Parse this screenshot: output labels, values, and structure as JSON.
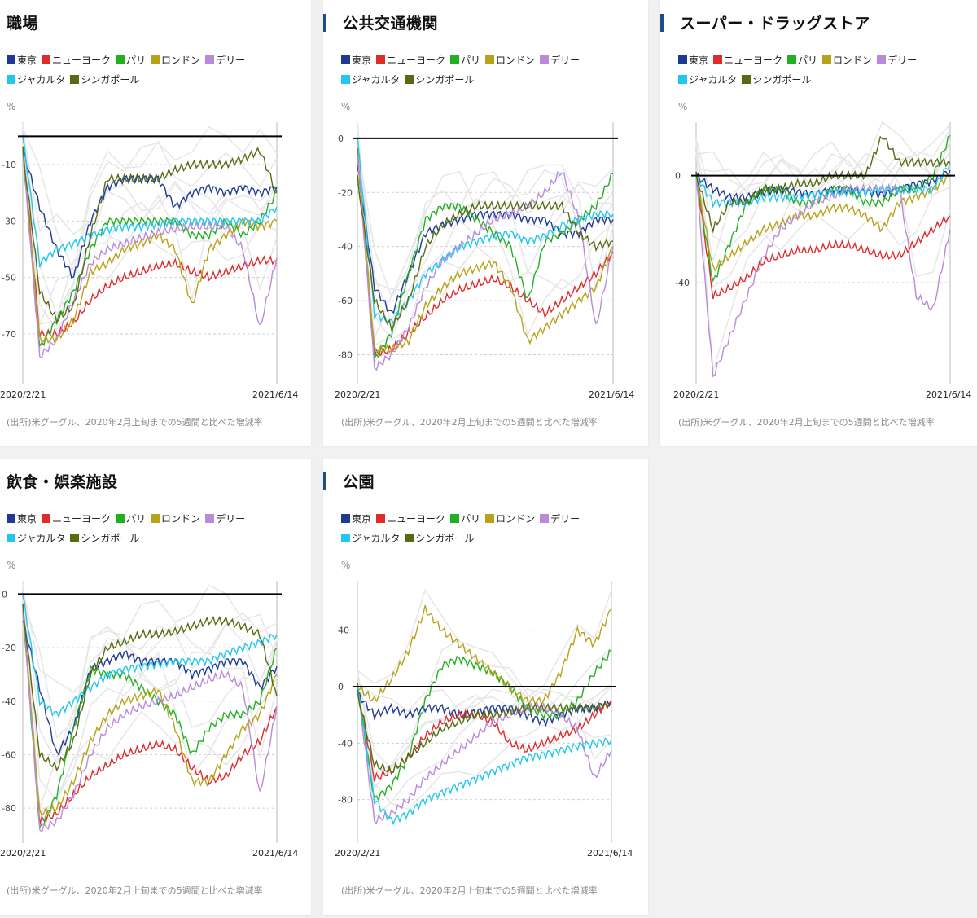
{
  "legend": [
    {
      "name": "東京",
      "color": "#1f3a93"
    },
    {
      "name": "ニューヨーク",
      "color": "#e02b2b"
    },
    {
      "name": "パリ",
      "color": "#22b022"
    },
    {
      "name": "ロンドン",
      "color": "#b8a21a"
    },
    {
      "name": "デリー",
      "color": "#b98adb"
    },
    {
      "name": "ジャカルタ",
      "color": "#22c6ee"
    },
    {
      "name": "シンガポール",
      "color": "#556b12"
    }
  ],
  "unit_label": "%",
  "source_text": "(出所)米グーグル、2020年2月上旬までの5週間と比べた増減率",
  "x_start_label": "2020/2/21",
  "x_end_label": "2021/6/14",
  "chart_data": [
    {
      "type": "line",
      "title": "職場",
      "ylim": [
        -85,
        5
      ],
      "yticks": [
        -10,
        -30,
        -50,
        -70
      ],
      "series": [
        {
          "name": "東京",
          "values": [
            -5,
            -25,
            -40,
            -50,
            -30,
            -18,
            -15,
            -15,
            -15,
            -25,
            -20,
            -18,
            -20,
            -18,
            -20,
            -18
          ]
        },
        {
          "name": "ニューヨーク",
          "values": [
            -5,
            -70,
            -70,
            -66,
            -58,
            -53,
            -50,
            -48,
            -46,
            -45,
            -48,
            -50,
            -48,
            -46,
            -44,
            -44
          ]
        },
        {
          "name": "パリ",
          "values": [
            -5,
            -75,
            -65,
            -55,
            -40,
            -30,
            -30,
            -30,
            -30,
            -30,
            -35,
            -35,
            -30,
            -35,
            -30,
            -20
          ]
        },
        {
          "name": "ロンドン",
          "values": [
            -5,
            -72,
            -72,
            -65,
            -48,
            -45,
            -40,
            -38,
            -35,
            -40,
            -60,
            -40,
            -35,
            -30,
            -32,
            -30
          ]
        },
        {
          "name": "デリー",
          "values": [
            -5,
            -78,
            -72,
            -58,
            -45,
            -40,
            -38,
            -36,
            -34,
            -33,
            -32,
            -32,
            -32,
            -40,
            -68,
            -43
          ]
        },
        {
          "name": "ジャカルタ",
          "values": [
            0,
            -45,
            -40,
            -38,
            -35,
            -33,
            -32,
            -32,
            -31,
            -30,
            -30,
            -30,
            -30,
            -30,
            -30,
            -25
          ]
        },
        {
          "name": "シンガポール",
          "values": [
            -5,
            -55,
            -65,
            -60,
            -35,
            -15,
            -15,
            -15,
            -15,
            -12,
            -10,
            -10,
            -10,
            -8,
            -5,
            -20
          ]
        }
      ]
    },
    {
      "type": "line",
      "title": "公共交通機関",
      "ylim": [
        -88,
        6
      ],
      "yticks": [
        0,
        -20,
        -40,
        -60,
        -80
      ],
      "series": [
        {
          "name": "東京",
          "values": [
            -10,
            -55,
            -65,
            -50,
            -35,
            -32,
            -30,
            -28,
            -28,
            -28,
            -30,
            -30,
            -35,
            -35,
            -30,
            -30
          ]
        },
        {
          "name": "ニューヨーク",
          "values": [
            -5,
            -80,
            -78,
            -72,
            -66,
            -60,
            -56,
            -54,
            -52,
            -55,
            -60,
            -65,
            -60,
            -55,
            -50,
            -42
          ]
        },
        {
          "name": "パリ",
          "values": [
            -5,
            -82,
            -72,
            -50,
            -30,
            -25,
            -25,
            -30,
            -35,
            -40,
            -60,
            -38,
            -35,
            -30,
            -25,
            -13
          ]
        },
        {
          "name": "ロンドン",
          "values": [
            -5,
            -78,
            -78,
            -75,
            -62,
            -55,
            -50,
            -48,
            -46,
            -55,
            -75,
            -70,
            -65,
            -60,
            -55,
            -40
          ]
        },
        {
          "name": "デリー",
          "values": [
            -5,
            -85,
            -80,
            -70,
            -55,
            -45,
            -40,
            -35,
            -30,
            -28,
            -25,
            -20,
            -12,
            -30,
            -70,
            -40
          ]
        },
        {
          "name": "ジャカルタ",
          "values": [
            0,
            -65,
            -68,
            -60,
            -50,
            -45,
            -40,
            -38,
            -36,
            -35,
            -38,
            -36,
            -32,
            -30,
            -28,
            -28
          ]
        },
        {
          "name": "シンガポール",
          "values": [
            -15,
            -60,
            -70,
            -60,
            -40,
            -32,
            -28,
            -25,
            -25,
            -25,
            -25,
            -25,
            -25,
            -35,
            -40,
            -38
          ]
        }
      ]
    },
    {
      "type": "line",
      "title": "スーパー・ドラッグストア",
      "ylim": [
        -75,
        20
      ],
      "yticks": [
        0,
        -40
      ],
      "series": [
        {
          "name": "東京",
          "values": [
            0,
            -5,
            -8,
            -8,
            -6,
            -5,
            -6,
            -7,
            -5,
            -5,
            -6,
            -7,
            -5,
            -3,
            -2,
            2
          ]
        },
        {
          "name": "ニューヨーク",
          "values": [
            0,
            -45,
            -42,
            -38,
            -32,
            -30,
            -28,
            -28,
            -26,
            -26,
            -28,
            -30,
            -30,
            -25,
            -20,
            -15
          ]
        },
        {
          "name": "パリ",
          "values": [
            0,
            -40,
            -25,
            -10,
            -5,
            -5,
            -10,
            -10,
            -5,
            -5,
            -10,
            -10,
            -5,
            -5,
            0,
            15
          ]
        },
        {
          "name": "ロンドン",
          "values": [
            0,
            -35,
            -30,
            -25,
            -20,
            -18,
            -15,
            -15,
            -12,
            -12,
            -15,
            -20,
            -10,
            -8,
            -5,
            0
          ]
        },
        {
          "name": "デリー",
          "values": [
            0,
            -75,
            -60,
            -45,
            -30,
            -20,
            -15,
            -10,
            -8,
            -5,
            -5,
            -5,
            -5,
            -45,
            -50,
            -20
          ]
        },
        {
          "name": "ジャカルタ",
          "values": [
            0,
            -10,
            -10,
            -10,
            -8,
            -8,
            -8,
            -7,
            -6,
            -6,
            -6,
            -5,
            -5,
            -5,
            -5,
            5
          ]
        },
        {
          "name": "シンガポール",
          "values": [
            0,
            -20,
            -10,
            -10,
            -5,
            -5,
            -3,
            -3,
            0,
            0,
            0,
            15,
            5,
            5,
            5,
            5
          ]
        }
      ]
    },
    {
      "type": "line",
      "title": "飲食・娯楽施設",
      "ylim": [
        -90,
        5
      ],
      "yticks": [
        0,
        -20,
        -40,
        -60,
        -80
      ],
      "series": [
        {
          "name": "東京",
          "values": [
            -10,
            -35,
            -60,
            -50,
            -28,
            -25,
            -22,
            -25,
            -25,
            -25,
            -30,
            -28,
            -25,
            -25,
            -35,
            -27
          ]
        },
        {
          "name": "ニューヨーク",
          "values": [
            -5,
            -85,
            -82,
            -75,
            -68,
            -64,
            -60,
            -58,
            -56,
            -58,
            -65,
            -70,
            -68,
            -60,
            -55,
            -42
          ]
        },
        {
          "name": "パリ",
          "values": [
            -5,
            -88,
            -75,
            -50,
            -28,
            -30,
            -30,
            -35,
            -40,
            -45,
            -60,
            -50,
            -45,
            -45,
            -40,
            -20
          ]
        },
        {
          "name": "ロンドン",
          "values": [
            -5,
            -82,
            -80,
            -70,
            -55,
            -45,
            -40,
            -38,
            -36,
            -50,
            -70,
            -70,
            -60,
            -50,
            -45,
            -30
          ]
        },
        {
          "name": "デリー",
          "values": [
            -5,
            -88,
            -85,
            -75,
            -60,
            -50,
            -45,
            -42,
            -40,
            -38,
            -35,
            -32,
            -30,
            -35,
            -75,
            -42
          ]
        },
        {
          "name": "ジャカルタ",
          "values": [
            0,
            -40,
            -45,
            -40,
            -35,
            -30,
            -28,
            -27,
            -26,
            -25,
            -25,
            -25,
            -22,
            -20,
            -18,
            -15
          ]
        },
        {
          "name": "シンガポール",
          "values": [
            -5,
            -60,
            -65,
            -55,
            -30,
            -20,
            -18,
            -15,
            -15,
            -14,
            -12,
            -10,
            -10,
            -12,
            -15,
            -38
          ]
        }
      ]
    },
    {
      "type": "line",
      "title": "公園",
      "ylim": [
        -105,
        75
      ],
      "yticks": [
        40,
        0,
        -40,
        -80
      ],
      "series": [
        {
          "name": "東京",
          "values": [
            -5,
            -20,
            -15,
            -20,
            -15,
            -15,
            -20,
            -18,
            -15,
            -15,
            -20,
            -25,
            -20,
            -15,
            -15,
            -10
          ]
        },
        {
          "name": "ニューヨーク",
          "values": [
            0,
            -65,
            -60,
            -50,
            -35,
            -25,
            -20,
            -20,
            -25,
            -40,
            -45,
            -40,
            -35,
            -30,
            -20,
            -10
          ]
        },
        {
          "name": "パリ",
          "values": [
            0,
            -80,
            -70,
            -50,
            -10,
            15,
            20,
            15,
            10,
            0,
            -15,
            -20,
            -20,
            -10,
            10,
            25
          ]
        },
        {
          "name": "ロンドン",
          "values": [
            0,
            -10,
            5,
            25,
            55,
            40,
            30,
            20,
            10,
            0,
            -10,
            -10,
            10,
            40,
            30,
            55
          ]
        },
        {
          "name": "デリー",
          "values": [
            0,
            -95,
            -90,
            -80,
            -65,
            -55,
            -45,
            -35,
            -25,
            -20,
            -15,
            -15,
            -20,
            -30,
            -65,
            -45
          ]
        },
        {
          "name": "ジャカルタ",
          "values": [
            0,
            -80,
            -95,
            -90,
            -80,
            -75,
            -70,
            -65,
            -60,
            -55,
            -50,
            -48,
            -45,
            -42,
            -40,
            -38
          ]
        },
        {
          "name": "シンガポール",
          "values": [
            -5,
            -55,
            -60,
            -50,
            -40,
            -30,
            -25,
            -20,
            -20,
            -18,
            -15,
            -15,
            -15,
            -15,
            -15,
            -12
          ]
        }
      ]
    }
  ]
}
